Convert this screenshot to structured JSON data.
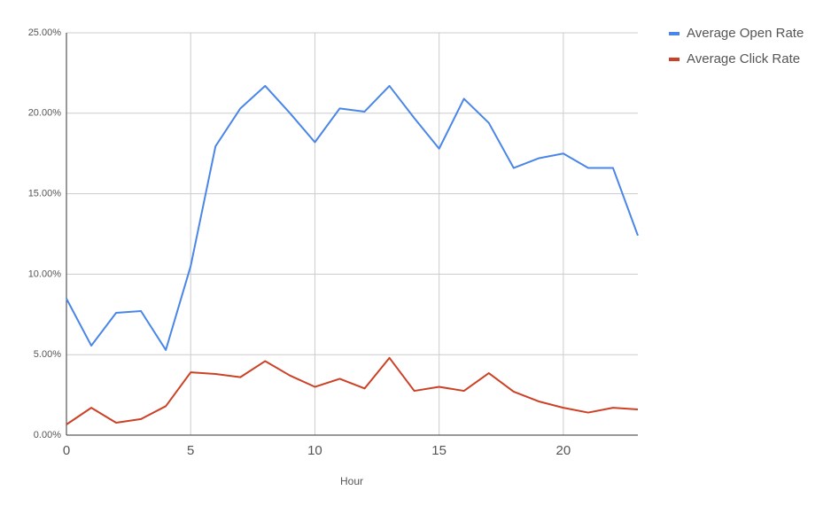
{
  "chart_data": {
    "type": "line",
    "x_label": "Hour",
    "x": [
      0,
      1,
      2,
      3,
      4,
      5,
      6,
      7,
      8,
      9,
      10,
      11,
      12,
      13,
      14,
      15,
      16,
      17,
      18,
      19,
      20,
      21,
      22,
      23
    ],
    "series": [
      {
        "name": "Average Open Rate",
        "color": "#4a86e8",
        "values": [
          8.48,
          5.56,
          7.6,
          7.71,
          5.29,
          10.5,
          17.95,
          20.3,
          21.7,
          20.0,
          18.2,
          20.3,
          20.1,
          21.7,
          19.7,
          17.8,
          20.9,
          19.4,
          16.6,
          17.2,
          17.5,
          16.6,
          16.6,
          12.4
        ]
      },
      {
        "name": "Average Click Rate",
        "color": "#cc4125",
        "values": [
          0.66,
          1.7,
          0.77,
          1.0,
          1.8,
          3.9,
          3.8,
          3.6,
          4.6,
          3.7,
          3.0,
          3.5,
          2.9,
          4.8,
          2.75,
          3.0,
          2.75,
          3.85,
          2.7,
          2.1,
          1.7,
          1.4,
          1.7,
          1.6
        ]
      }
    ],
    "xlim": [
      0,
      23
    ],
    "xticks": [
      0,
      5,
      10,
      15,
      20
    ],
    "ylim": [
      0,
      25
    ],
    "yticks": [
      {
        "value": 0,
        "label": "0.00%"
      },
      {
        "value": 5,
        "label": "5.00%"
      },
      {
        "value": 10,
        "label": "10.00%"
      },
      {
        "value": 15,
        "label": "15.00%"
      },
      {
        "value": 20,
        "label": "20.00%"
      },
      {
        "value": 25,
        "label": "25.00%"
      }
    ],
    "grid": true,
    "legend": "top-right"
  }
}
